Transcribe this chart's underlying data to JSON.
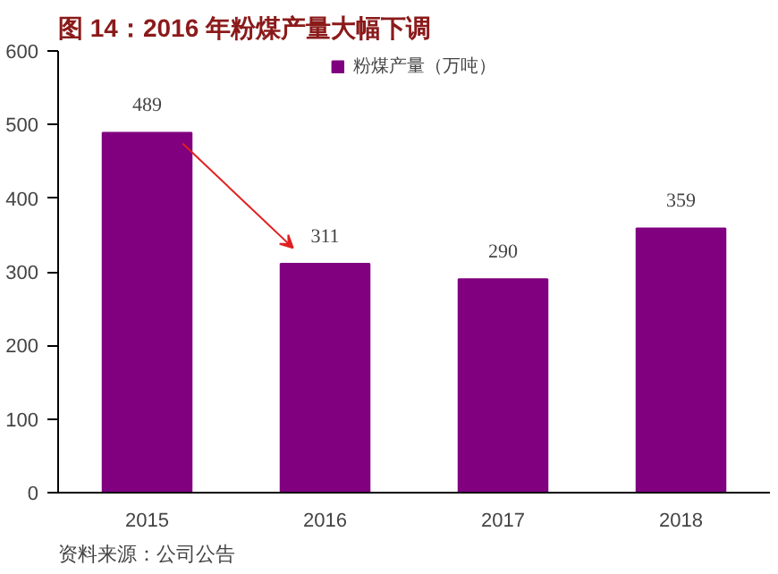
{
  "chart_data": {
    "type": "bar",
    "title": "图 14：2016 年粉煤产量大幅下调",
    "categories": [
      "2015",
      "2016",
      "2017",
      "2018"
    ],
    "series": [
      {
        "name": "粉煤产量（万吨）",
        "color": "#800080",
        "values": [
          489,
          311,
          290,
          359
        ]
      }
    ],
    "ylim": [
      0,
      600
    ],
    "yticks": [
      0,
      100,
      200,
      300,
      400,
      500,
      600
    ],
    "grid": false,
    "legend": "top",
    "data_labels": true,
    "annotations": [
      "资料来源：公司公告"
    ]
  }
}
